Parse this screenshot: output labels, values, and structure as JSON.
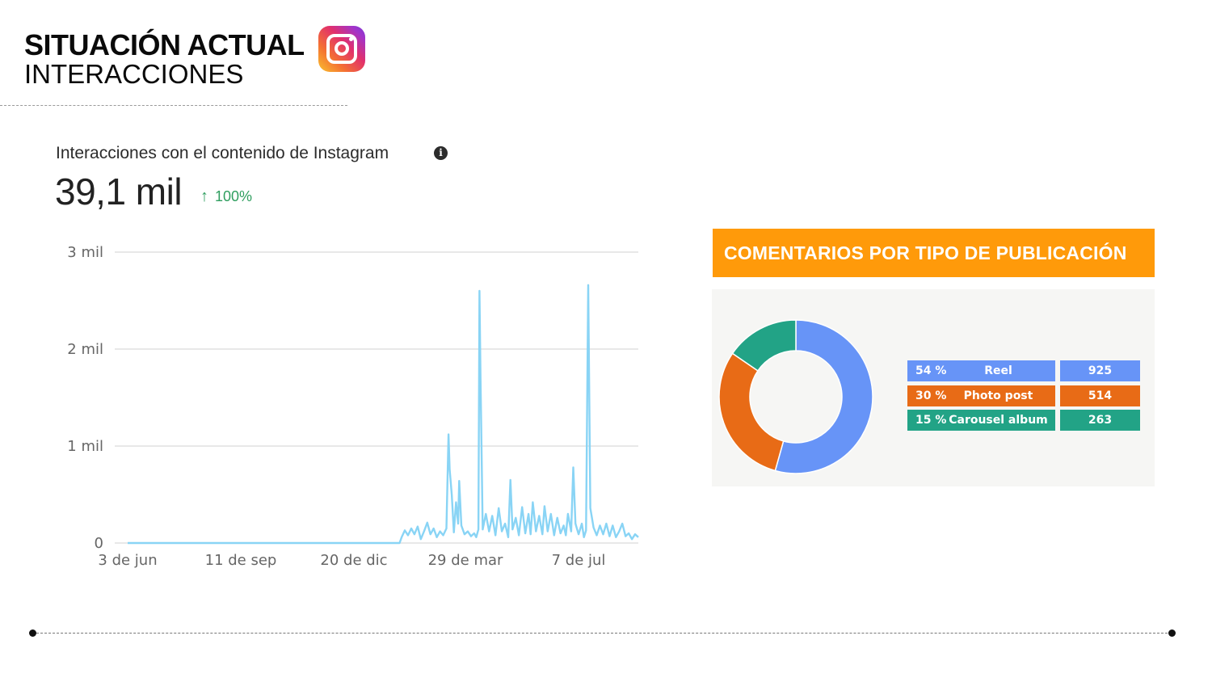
{
  "header": {
    "title": "SITUACIÓN ACTUAL",
    "subtitle": "INTERACCIONES",
    "logo_icon": "instagram-icon"
  },
  "insights": {
    "title": "Interacciones con el contenido de Instagram",
    "info_icon": "i",
    "total": "39,1 mil",
    "growth_arrow": "↑",
    "growth": "100%"
  },
  "comments": {
    "title": "COMENTARIOS POR TIPO DE PUBLICACIÓN",
    "rows": [
      {
        "pct": "54 %",
        "name": "Reel",
        "count": "925",
        "color": "#6794f7"
      },
      {
        "pct": "30 %",
        "name": "Photo post",
        "count": "514",
        "color": "#e86b16"
      },
      {
        "pct": "15 %",
        "name": "Carousel album",
        "count": "263",
        "color": "#22a386"
      }
    ]
  },
  "chart_data": [
    {
      "type": "line",
      "title": "Interacciones con el contenido de Instagram",
      "x_ticks": [
        "3 de jun",
        "11 de sep",
        "20 de dic",
        "29 de mar",
        "7 de jul"
      ],
      "y_ticks": [
        "0",
        "1 mil",
        "2 mil",
        "3 mil"
      ],
      "ylim": [
        0,
        3000
      ],
      "grid": true,
      "color": "#89d4f5",
      "series": [
        {
          "points": [
            [
              0,
              0
            ],
            [
              255,
              0
            ],
            [
              257,
              60
            ],
            [
              260,
              130
            ],
            [
              263,
              80
            ],
            [
              266,
              150
            ],
            [
              269,
              90
            ],
            [
              272,
              170
            ],
            [
              275,
              40
            ],
            [
              278,
              120
            ],
            [
              281,
              210
            ],
            [
              284,
              90
            ],
            [
              287,
              150
            ],
            [
              290,
              60
            ],
            [
              293,
              120
            ],
            [
              296,
              80
            ],
            [
              299,
              150
            ],
            [
              301,
              1120
            ],
            [
              302,
              760
            ],
            [
              304,
              500
            ],
            [
              306,
              110
            ],
            [
              308,
              420
            ],
            [
              310,
              200
            ],
            [
              311,
              640
            ],
            [
              313,
              180
            ],
            [
              316,
              90
            ],
            [
              319,
              120
            ],
            [
              322,
              70
            ],
            [
              325,
              100
            ],
            [
              327,
              60
            ],
            [
              329,
              140
            ],
            [
              330,
              2600
            ],
            [
              331,
              1700
            ],
            [
              333,
              140
            ],
            [
              336,
              300
            ],
            [
              339,
              120
            ],
            [
              342,
              280
            ],
            [
              345,
              80
            ],
            [
              348,
              360
            ],
            [
              351,
              120
            ],
            [
              354,
              200
            ],
            [
              357,
              60
            ],
            [
              359,
              650
            ],
            [
              361,
              140
            ],
            [
              364,
              260
            ],
            [
              367,
              80
            ],
            [
              370,
              370
            ],
            [
              373,
              100
            ],
            [
              376,
              300
            ],
            [
              378,
              90
            ],
            [
              380,
              420
            ],
            [
              383,
              120
            ],
            [
              386,
              280
            ],
            [
              389,
              90
            ],
            [
              391,
              380
            ],
            [
              394,
              120
            ],
            [
              397,
              300
            ],
            [
              400,
              80
            ],
            [
              403,
              260
            ],
            [
              406,
              100
            ],
            [
              409,
              180
            ],
            [
              411,
              80
            ],
            [
              413,
              300
            ],
            [
              416,
              120
            ],
            [
              418,
              780
            ],
            [
              420,
              200
            ],
            [
              423,
              90
            ],
            [
              426,
              200
            ],
            [
              428,
              60
            ],
            [
              430,
              130
            ],
            [
              432,
              2660
            ],
            [
              434,
              360
            ],
            [
              437,
              160
            ],
            [
              440,
              80
            ],
            [
              443,
              180
            ],
            [
              446,
              90
            ],
            [
              449,
              200
            ],
            [
              452,
              70
            ],
            [
              455,
              180
            ],
            [
              458,
              60
            ],
            [
              461,
              120
            ],
            [
              464,
              200
            ],
            [
              467,
              70
            ],
            [
              470,
              100
            ],
            [
              473,
              40
            ],
            [
              476,
              90
            ],
            [
              479,
              60
            ]
          ]
        }
      ]
    },
    {
      "type": "pie",
      "title": "COMENTARIOS POR TIPO DE PUBLICACIÓN",
      "categories": [
        "Reel",
        "Photo post",
        "Carousel album"
      ],
      "values": [
        925,
        514,
        263
      ],
      "percentages": [
        54,
        30,
        15
      ],
      "colors": [
        "#6794f7",
        "#e86b16",
        "#22a386"
      ],
      "donut": true
    }
  ]
}
